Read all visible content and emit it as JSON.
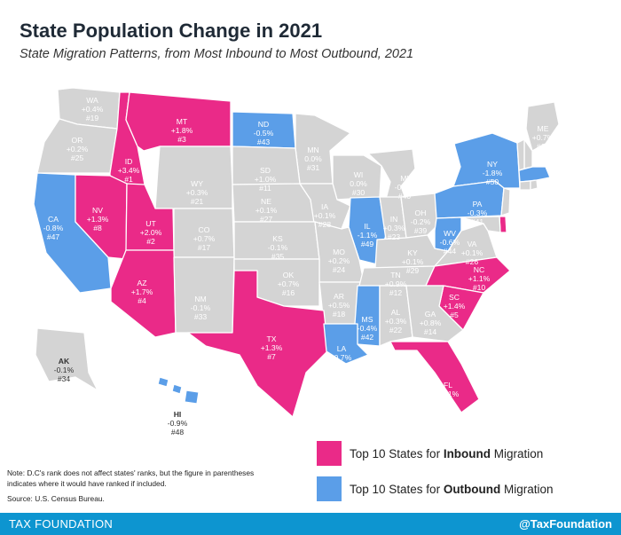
{
  "header": {
    "title": "State Population Change in 2021",
    "subtitle": "State Migration Patterns, from Most Inbound to Most Outbound, 2021"
  },
  "colors": {
    "inbound": "#ea2a88",
    "outbound": "#5b9ee8",
    "neutral": "#d4d4d4",
    "footer": "#0d95d0",
    "border": "#ffffff"
  },
  "states": [
    {
      "code": "WA",
      "change": "+0.4%",
      "rank": "#19",
      "category": "neutral"
    },
    {
      "code": "OR",
      "change": "+0.2%",
      "rank": "#25",
      "category": "neutral"
    },
    {
      "code": "ID",
      "change": "+3.4%",
      "rank": "#1",
      "category": "inbound"
    },
    {
      "code": "MT",
      "change": "+1.8%",
      "rank": "#3",
      "category": "inbound"
    },
    {
      "code": "ND",
      "change": "-0.5%",
      "rank": "#43",
      "category": "outbound"
    },
    {
      "code": "MN",
      "change": "0.0%",
      "rank": "#31",
      "category": "neutral"
    },
    {
      "code": "SD",
      "change": "+1.0%",
      "rank": "#11",
      "category": "neutral"
    },
    {
      "code": "WY",
      "change": "+0.3%",
      "rank": "#21",
      "category": "neutral"
    },
    {
      "code": "WI",
      "change": "0.0%",
      "rank": "#30",
      "category": "neutral"
    },
    {
      "code": "MI",
      "change": "-0.3%",
      "rank": "#40",
      "category": "neutral"
    },
    {
      "code": "NY",
      "change": "-1.8%",
      "rank": "#50",
      "category": "outbound"
    },
    {
      "code": "ME",
      "change": "+0.7%",
      "rank": "#15",
      "category": "neutral"
    },
    {
      "code": "CA",
      "change": "-0.8%",
      "rank": "#47",
      "category": "outbound"
    },
    {
      "code": "NV",
      "change": "+1.3%",
      "rank": "#8",
      "category": "inbound"
    },
    {
      "code": "UT",
      "change": "+2.0%",
      "rank": "#2",
      "category": "inbound"
    },
    {
      "code": "CO",
      "change": "+0.7%",
      "rank": "#17",
      "category": "neutral"
    },
    {
      "code": "NE",
      "change": "+0.1%",
      "rank": "#27",
      "category": "neutral"
    },
    {
      "code": "IA",
      "change": "+0.1%",
      "rank": "#28",
      "category": "neutral"
    },
    {
      "code": "IL",
      "change": "-1.1%",
      "rank": "#49",
      "category": "outbound"
    },
    {
      "code": "IN",
      "change": "+0.3%",
      "rank": "#23",
      "category": "neutral"
    },
    {
      "code": "OH",
      "change": "-0.2%",
      "rank": "#39",
      "category": "neutral"
    },
    {
      "code": "PA",
      "change": "-0.3%",
      "rank": "#41",
      "category": "outbound"
    },
    {
      "code": "KS",
      "change": "-0.1%",
      "rank": "#35",
      "category": "neutral"
    },
    {
      "code": "MO",
      "change": "+0.2%",
      "rank": "#24",
      "category": "neutral"
    },
    {
      "code": "KY",
      "change": "+0.1%",
      "rank": "#29",
      "category": "neutral"
    },
    {
      "code": "WV",
      "change": "-0.6%",
      "rank": "#44",
      "category": "outbound"
    },
    {
      "code": "VA",
      "change": "+0.1%",
      "rank": "#26",
      "category": "neutral"
    },
    {
      "code": "AZ",
      "change": "+1.7%",
      "rank": "#4",
      "category": "inbound"
    },
    {
      "code": "NM",
      "change": "-0.1%",
      "rank": "#33",
      "category": "neutral"
    },
    {
      "code": "OK",
      "change": "+0.7%",
      "rank": "#16",
      "category": "neutral"
    },
    {
      "code": "AR",
      "change": "+0.5%",
      "rank": "#18",
      "category": "neutral"
    },
    {
      "code": "TN",
      "change": "+0.9%",
      "rank": "#12",
      "category": "neutral"
    },
    {
      "code": "NC",
      "change": "+1.1%",
      "rank": "#10",
      "category": "inbound"
    },
    {
      "code": "SC",
      "change": "+1.4%",
      "rank": "#5",
      "category": "inbound"
    },
    {
      "code": "MS",
      "change": "-0.4%",
      "rank": "#42",
      "category": "outbound"
    },
    {
      "code": "AL",
      "change": "+0.3%",
      "rank": "#22",
      "category": "neutral"
    },
    {
      "code": "GA",
      "change": "+0.8%",
      "rank": "#14",
      "category": "neutral"
    },
    {
      "code": "TX",
      "change": "+1.3%",
      "rank": "#7",
      "category": "inbound"
    },
    {
      "code": "LA",
      "change": "-0.7%",
      "rank": "#46",
      "category": "outbound"
    },
    {
      "code": "FL",
      "change": "+1.1%",
      "rank": "#9",
      "category": "inbound"
    },
    {
      "code": "AK",
      "change": "-0.1%",
      "rank": "#34",
      "category": "neutral"
    },
    {
      "code": "HI",
      "change": "-0.9%",
      "rank": "#48",
      "category": "outbound"
    },
    {
      "code": "MA",
      "change": "",
      "rank": "",
      "category": "outbound"
    },
    {
      "code": "DE",
      "change": "",
      "rank": "",
      "category": "inbound"
    },
    {
      "code": "NH",
      "change": "",
      "rank": "",
      "category": "neutral"
    },
    {
      "code": "VT",
      "change": "",
      "rank": "",
      "category": "neutral"
    },
    {
      "code": "CT",
      "change": "",
      "rank": "",
      "category": "neutral"
    },
    {
      "code": "RI",
      "change": "",
      "rank": "",
      "category": "neutral"
    },
    {
      "code": "NJ",
      "change": "",
      "rank": "",
      "category": "neutral"
    },
    {
      "code": "MD",
      "change": "",
      "rank": "",
      "category": "neutral"
    }
  ],
  "legend": {
    "inbound": {
      "prefix": "Top 10 States for ",
      "bold": "Inbound",
      "suffix": " Migration"
    },
    "outbound": {
      "prefix": "Top 10 States for ",
      "bold": "Outbound",
      "suffix": " Migration"
    }
  },
  "note": "Note: D.C's rank does not affect states' ranks, but the figure in parentheses indicates where it would have ranked if included.",
  "source": "Source: U.S. Census Bureau.",
  "footer": {
    "brand": "TAX FOUNDATION",
    "handle": "@TaxFoundation"
  }
}
